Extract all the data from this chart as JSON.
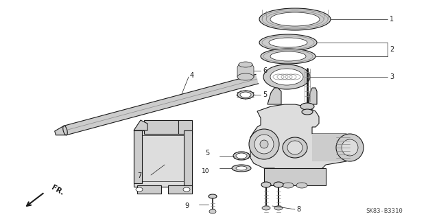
{
  "bg_color": "#ffffff",
  "line_color": "#1a1a1a",
  "fig_width": 6.4,
  "fig_height": 3.19,
  "dpi": 100,
  "diagram_code": "SK83-B3310",
  "label_fontsize": 7.0,
  "code_fontsize": 6.5
}
